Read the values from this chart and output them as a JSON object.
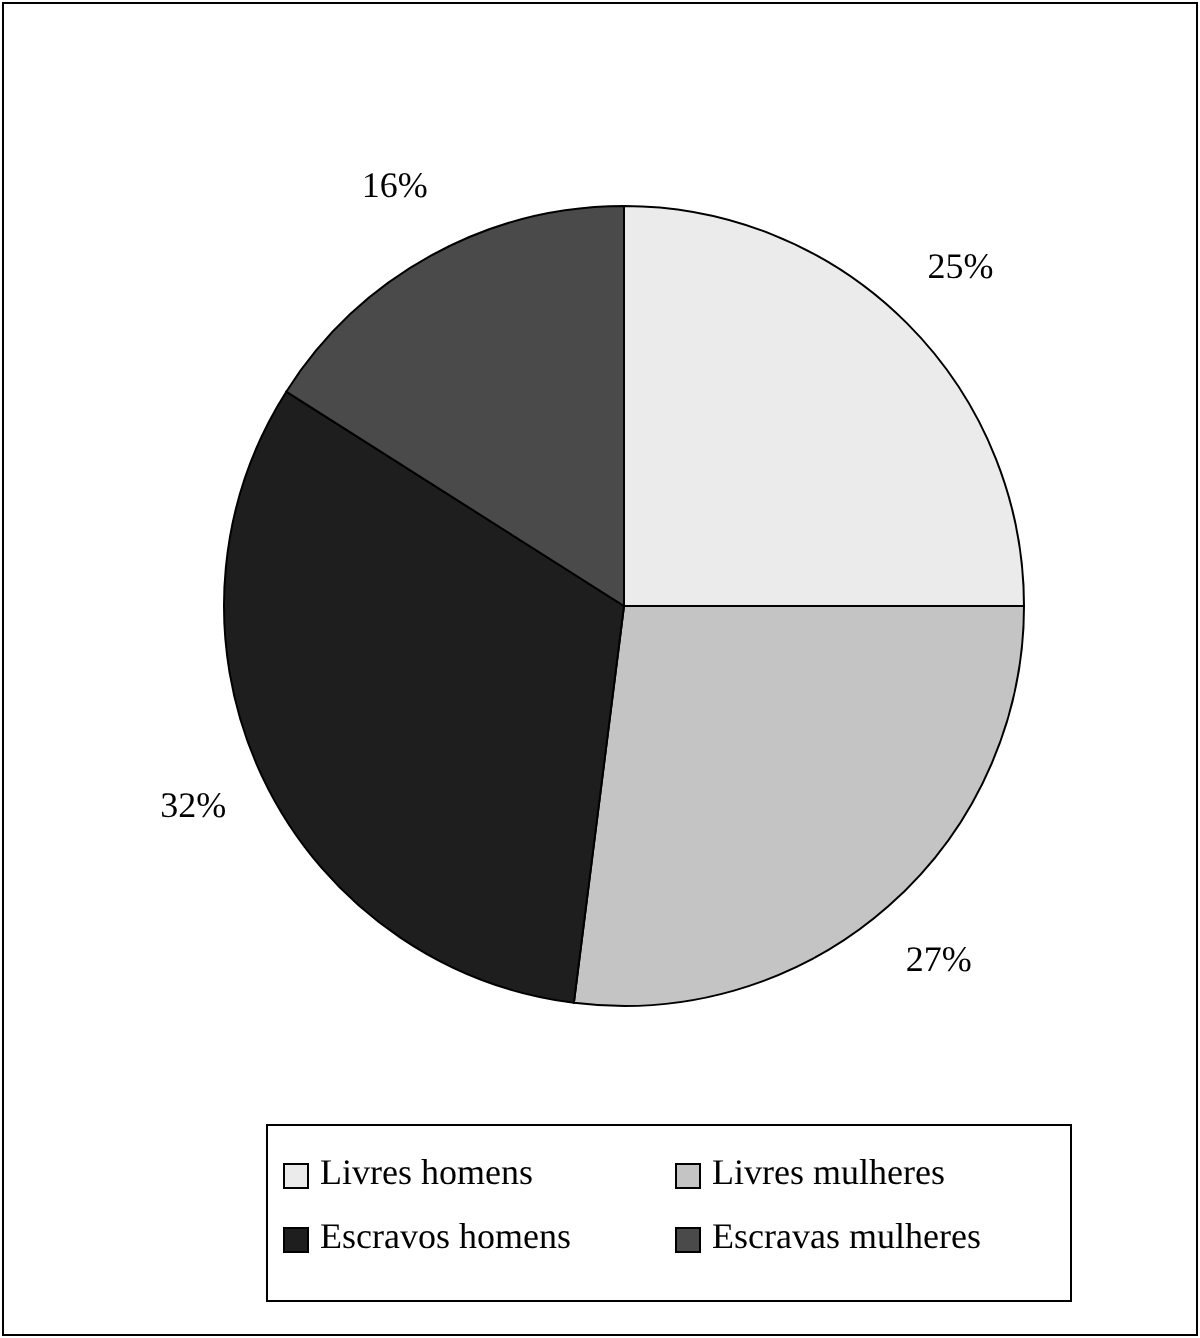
{
  "chart_data": {
    "type": "pie",
    "categories": [
      "Livres homens",
      "Livres mulheres",
      "Escravos homens",
      "Escravas mulheres"
    ],
    "values": [
      25,
      27,
      32,
      16
    ],
    "colors": [
      "#ebebeb",
      "#c4c4c4",
      "#1e1e1e",
      "#4a4a4a"
    ],
    "value_labels": [
      "25%",
      "27%",
      "32%",
      "16%"
    ],
    "legend": "bottom"
  }
}
